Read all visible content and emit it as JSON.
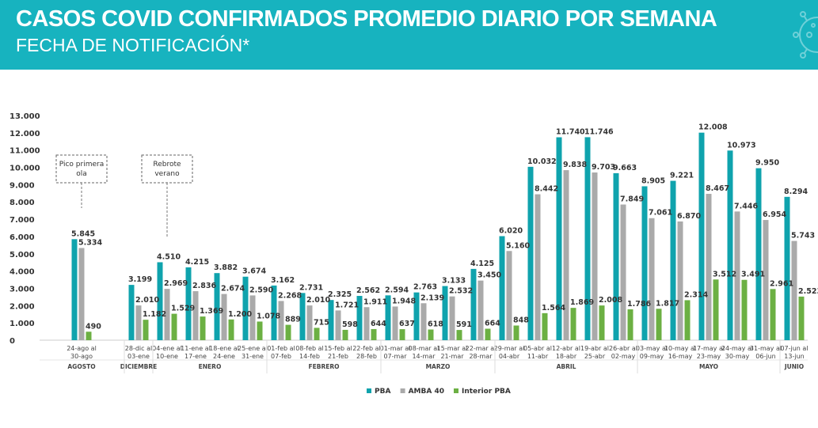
{
  "header": {
    "title": "CASOS COVID CONFIRMADOS PROMEDIO DIARIO POR SEMANA",
    "subtitle": "FECHA DE NOTIFICACIÓN*",
    "icon": "virus-icon",
    "color": "#17b3bf"
  },
  "chart_data": {
    "type": "bar",
    "ylim": [
      0,
      13000
    ],
    "yticks": [
      "0",
      "1.000",
      "2.000",
      "3.000",
      "4.000",
      "5.000",
      "6.000",
      "7.000",
      "8.000",
      "9.000",
      "10.000",
      "11.000",
      "12.000",
      "13.000"
    ],
    "grid": false,
    "legend_position": "bottom",
    "categories": [
      [
        "24-ago al",
        "30-ago"
      ],
      [
        "28-dic al",
        "03-ene"
      ],
      [
        "04-ene al",
        "10-ene"
      ],
      [
        "11-ene al",
        "17-ene"
      ],
      [
        "18-ene al",
        "24-ene"
      ],
      [
        "25-ene al",
        "31-ene"
      ],
      [
        "01-feb al",
        "07-feb"
      ],
      [
        "08-feb al",
        "14-feb"
      ],
      [
        "15-feb al",
        "21-feb"
      ],
      [
        "22-feb al",
        "28-feb"
      ],
      [
        "01-mar al",
        "07-mar"
      ],
      [
        "08-mar al",
        "14-mar"
      ],
      [
        "15-mar al",
        "21-mar"
      ],
      [
        "22-mar al",
        "28-mar"
      ],
      [
        "29-mar al",
        "04-abr"
      ],
      [
        "05-abr al",
        "11-abr"
      ],
      [
        "12-abr al",
        "18-abr"
      ],
      [
        "19-abr al",
        "25-abr"
      ],
      [
        "26-abr al",
        "02-may"
      ],
      [
        "03-may al",
        "09-may"
      ],
      [
        "10-may al",
        "16-may"
      ],
      [
        "17-may al",
        "23-may"
      ],
      [
        "24-may al",
        "30-may"
      ],
      [
        "31-may al",
        "06-jun"
      ],
      [
        "07-jun al",
        "13-jun"
      ]
    ],
    "months": [
      {
        "label": "AGOSTO",
        "from": 0,
        "to": 0
      },
      {
        "label": "DICIEMBRE",
        "from": 1,
        "to": 1
      },
      {
        "label": "ENERO",
        "from": 2,
        "to": 5
      },
      {
        "label": "FEBRERO",
        "from": 6,
        "to": 9
      },
      {
        "label": "MARZO",
        "from": 10,
        "to": 13
      },
      {
        "label": "ABRIL",
        "from": 14,
        "to": 18
      },
      {
        "label": "MAYO",
        "from": 19,
        "to": 23
      },
      {
        "label": "JUNIO",
        "from": 24,
        "to": 24
      }
    ],
    "series": [
      {
        "name": "PBA",
        "color": "#0fa3ad",
        "values": [
          5845,
          3199,
          4510,
          4215,
          3882,
          3674,
          3162,
          2731,
          2325,
          2562,
          2594,
          2763,
          3133,
          4125,
          6020,
          10032,
          11740,
          11746,
          9663,
          8905,
          9221,
          12008,
          10973,
          9950,
          8294
        ],
        "labels": [
          "5.845",
          "3.199",
          "4.510",
          "4.215",
          "3.882",
          "3.674",
          "3.162",
          "2.731",
          "2.325",
          "2.562",
          "2.594",
          "2.763",
          "3.133",
          "4.125",
          "6.020",
          "10.032",
          "11.740",
          "11.746",
          "9.663",
          "8.905",
          "9.221",
          "12.008",
          "10.973",
          "9.950",
          "8.294"
        ]
      },
      {
        "name": "AMBA 40",
        "color": "#aaaaaa",
        "values": [
          5334,
          2010,
          2969,
          2836,
          2674,
          2590,
          2268,
          2010,
          1721,
          1911,
          1948,
          2139,
          2532,
          3450,
          5160,
          8442,
          9838,
          9703,
          7849,
          7061,
          6870,
          8467,
          7446,
          6954,
          5743
        ],
        "labels": [
          "5.334",
          "2.010",
          "2.969",
          "2.836",
          "2.674",
          "2.590",
          "2.268",
          "2.010",
          "1.721",
          "1.911",
          "1.948",
          "2.139",
          "2.532",
          "3.450",
          "5.160",
          "8.442",
          "9.838",
          "9.703",
          "7.849",
          "7.061",
          "6.870",
          "8.467",
          "7.446",
          "6.954",
          "5.743"
        ]
      },
      {
        "name": "Interior PBA",
        "color": "#6cb043",
        "values": [
          490,
          1182,
          1529,
          1369,
          1200,
          1078,
          889,
          715,
          598,
          644,
          637,
          618,
          591,
          664,
          848,
          1564,
          1869,
          2008,
          1786,
          1817,
          2314,
          3512,
          3491,
          2961,
          2523
        ],
        "labels": [
          "490",
          "1.182",
          "1.529",
          "1.369",
          "1.200",
          "1.078",
          "889",
          "715",
          "598",
          "644",
          "637",
          "618",
          "591",
          "664",
          "848",
          "1.564",
          "1.869",
          "2.008",
          "1.786",
          "1.817",
          "2.314",
          "3.512",
          "3.491",
          "2.961",
          "2.523"
        ]
      }
    ],
    "annotations": [
      {
        "lines": [
          "Pico primera",
          "ola"
        ],
        "category": 0
      },
      {
        "lines": [
          "Rebrote",
          "verano"
        ],
        "category": 2
      }
    ]
  }
}
